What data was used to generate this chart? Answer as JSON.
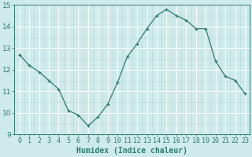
{
  "x": [
    0,
    1,
    2,
    3,
    4,
    5,
    6,
    7,
    8,
    9,
    10,
    11,
    12,
    13,
    14,
    15,
    16,
    17,
    18,
    19,
    20,
    21,
    22,
    23
  ],
  "y": [
    12.7,
    12.2,
    11.9,
    11.5,
    11.1,
    10.1,
    9.9,
    9.4,
    9.8,
    10.4,
    11.4,
    12.6,
    13.2,
    13.9,
    14.5,
    14.8,
    14.5,
    14.3,
    13.9,
    13.9,
    12.4,
    11.7,
    11.5,
    10.9
  ],
  "line_color": "#2e7d6e",
  "marker": "+",
  "marker_size": 3,
  "bg_color": "#ceeaea",
  "grid_major_color": "#ffffff",
  "grid_minor_color": "#b8d8d8",
  "xlabel": "Humidex (Indice chaleur)",
  "xlim": [
    -0.5,
    23.5
  ],
  "ylim": [
    9,
    15
  ],
  "yticks": [
    9,
    10,
    11,
    12,
    13,
    14,
    15
  ],
  "xticks": [
    0,
    1,
    2,
    3,
    4,
    5,
    6,
    7,
    8,
    9,
    10,
    11,
    12,
    13,
    14,
    15,
    16,
    17,
    18,
    19,
    20,
    21,
    22,
    23
  ],
  "tick_color": "#2e7d6e",
  "axis_fontsize": 6,
  "xlabel_fontsize": 7
}
